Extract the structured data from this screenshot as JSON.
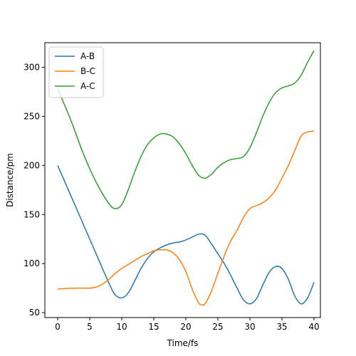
{
  "chart_data": {
    "type": "line",
    "title": "",
    "xlabel": "Time/fs",
    "ylabel": "Distance/pm",
    "xlim": [
      -2,
      41
    ],
    "ylim": [
      45,
      325
    ],
    "xticks": [
      0,
      5,
      10,
      15,
      20,
      25,
      30,
      35,
      40
    ],
    "yticks": [
      50,
      100,
      150,
      200,
      250,
      300
    ],
    "grid": false,
    "legend_position": "top-left",
    "series": [
      {
        "name": "A-B",
        "color": "#1f77b4",
        "points": [
          [
            0,
            200
          ],
          [
            2,
            170
          ],
          [
            4,
            140
          ],
          [
            6,
            110
          ],
          [
            8,
            80
          ],
          [
            9,
            68
          ],
          [
            10,
            65
          ],
          [
            11,
            70
          ],
          [
            12,
            82
          ],
          [
            13,
            95
          ],
          [
            14,
            105
          ],
          [
            15,
            112
          ],
          [
            16,
            116
          ],
          [
            17,
            119
          ],
          [
            18,
            121
          ],
          [
            19,
            122
          ],
          [
            20,
            124
          ],
          [
            21,
            127
          ],
          [
            22,
            130
          ],
          [
            23,
            129
          ],
          [
            24,
            120
          ],
          [
            25,
            110
          ],
          [
            26,
            100
          ],
          [
            27,
            88
          ],
          [
            28,
            75
          ],
          [
            29,
            63
          ],
          [
            30,
            59
          ],
          [
            31,
            64
          ],
          [
            32,
            78
          ],
          [
            33,
            91
          ],
          [
            34,
            97
          ],
          [
            35,
            95
          ],
          [
            36,
            84
          ],
          [
            37,
            67
          ],
          [
            38,
            59
          ],
          [
            39,
            65
          ],
          [
            40,
            81
          ]
        ]
      },
      {
        "name": "B-C",
        "color": "#ff7f0e",
        "points": [
          [
            0,
            74
          ],
          [
            1,
            74.5
          ],
          [
            2,
            74.8
          ],
          [
            3,
            75
          ],
          [
            4,
            75
          ],
          [
            5,
            75
          ],
          [
            6,
            76
          ],
          [
            7,
            79
          ],
          [
            8,
            84
          ],
          [
            9,
            90
          ],
          [
            10,
            95
          ],
          [
            11,
            99
          ],
          [
            12,
            103
          ],
          [
            13,
            107
          ],
          [
            14,
            110
          ],
          [
            15,
            113
          ],
          [
            16,
            114
          ],
          [
            17,
            114
          ],
          [
            18,
            111
          ],
          [
            19,
            104
          ],
          [
            20,
            92
          ],
          [
            21,
            74
          ],
          [
            22,
            60
          ],
          [
            22.5,
            58
          ],
          [
            23,
            59
          ],
          [
            24,
            72
          ],
          [
            25,
            90
          ],
          [
            26,
            108
          ],
          [
            27,
            123
          ],
          [
            28,
            134
          ],
          [
            29,
            147
          ],
          [
            30,
            156
          ],
          [
            31,
            159
          ],
          [
            32,
            162
          ],
          [
            33,
            167
          ],
          [
            34,
            175
          ],
          [
            35,
            187
          ],
          [
            36,
            200
          ],
          [
            37,
            215
          ],
          [
            38,
            230
          ],
          [
            39,
            234
          ],
          [
            40,
            235
          ]
        ]
      },
      {
        "name": "A-C",
        "color": "#2ca02c",
        "points": [
          [
            0,
            278
          ],
          [
            2,
            247
          ],
          [
            4,
            212
          ],
          [
            6,
            183
          ],
          [
            8,
            161
          ],
          [
            9,
            156
          ],
          [
            10,
            160
          ],
          [
            11,
            175
          ],
          [
            12,
            193
          ],
          [
            13,
            209
          ],
          [
            14,
            221
          ],
          [
            15,
            228
          ],
          [
            16,
            232
          ],
          [
            17,
            232
          ],
          [
            18,
            229
          ],
          [
            19,
            222
          ],
          [
            20,
            212
          ],
          [
            21,
            200
          ],
          [
            22,
            190
          ],
          [
            23,
            187
          ],
          [
            24,
            191
          ],
          [
            25,
            198
          ],
          [
            26,
            203
          ],
          [
            27,
            206
          ],
          [
            28,
            207
          ],
          [
            29,
            209
          ],
          [
            30,
            218
          ],
          [
            31,
            233
          ],
          [
            32,
            250
          ],
          [
            33,
            264
          ],
          [
            34,
            274
          ],
          [
            35,
            279
          ],
          [
            36,
            281
          ],
          [
            37,
            284
          ],
          [
            38,
            292
          ],
          [
            39,
            305
          ],
          [
            40,
            317
          ]
        ]
      }
    ]
  }
}
